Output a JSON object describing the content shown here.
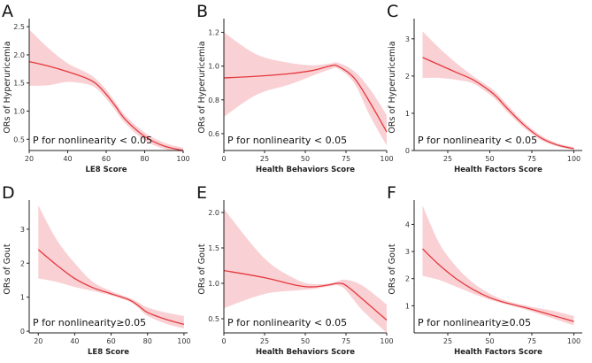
{
  "chart_data": [
    {
      "panel": "A",
      "type": "line",
      "xlabel": "LE8 Score",
      "ylabel": "ORs of Hyperuricemia",
      "xlim": [
        20,
        100
      ],
      "ylim": [
        0.3,
        2.55
      ],
      "xticks": [
        20,
        40,
        60,
        80,
        100
      ],
      "yticks": [
        0.5,
        1.0,
        1.5,
        2.0,
        2.5
      ],
      "xticklabels": [
        "20",
        "40",
        "60",
        "80",
        "100"
      ],
      "yticklabels": [
        "0.5",
        "1.0",
        "1.5",
        "2.0",
        "2.5"
      ],
      "x": [
        20,
        30,
        40,
        50,
        55,
        60,
        65,
        70,
        80,
        90,
        100
      ],
      "y": [
        1.88,
        1.8,
        1.7,
        1.58,
        1.48,
        1.3,
        1.08,
        0.85,
        0.55,
        0.38,
        0.3
      ],
      "lower": [
        1.45,
        1.46,
        1.52,
        1.48,
        1.4,
        1.22,
        1.0,
        0.78,
        0.48,
        0.33,
        0.27
      ],
      "upper": [
        2.45,
        2.12,
        1.85,
        1.68,
        1.56,
        1.38,
        1.15,
        0.92,
        0.62,
        0.44,
        0.35
      ],
      "annotation": "P for nonlinearity < 0.05"
    },
    {
      "panel": "B",
      "type": "line",
      "xlabel": "Health Behaviors Score",
      "ylabel": "ORs of Hyperuricemia",
      "xlim": [
        0,
        100
      ],
      "ylim": [
        0.5,
        1.25
      ],
      "xticks": [
        0,
        25,
        50,
        75,
        100
      ],
      "yticks": [
        0.6,
        0.8,
        1.0,
        1.2
      ],
      "xticklabels": [
        "0",
        "25",
        "50",
        "75",
        "100"
      ],
      "yticklabels": [
        "0.6",
        "0.8",
        "1.0",
        "1.2"
      ],
      "x": [
        0,
        20,
        40,
        55,
        65,
        70,
        80,
        90,
        100
      ],
      "y": [
        0.93,
        0.94,
        0.955,
        0.975,
        1.0,
        1.0,
        0.93,
        0.78,
        0.61
      ],
      "lower": [
        0.7,
        0.83,
        0.89,
        0.945,
        0.98,
        0.985,
        0.9,
        0.7,
        0.53
      ],
      "upper": [
        1.2,
        1.07,
        1.02,
        1.005,
        1.015,
        1.02,
        0.97,
        0.86,
        0.71
      ],
      "annotation": "P for nonlinearity < 0.05"
    },
    {
      "panel": "C",
      "type": "line",
      "xlabel": "Health Factors Score",
      "ylabel": "ORs of Hyperuricemia",
      "xlim": [
        5,
        105
      ],
      "ylim": [
        0,
        3.4
      ],
      "xticks": [
        25,
        50,
        75,
        100
      ],
      "yticks": [
        0,
        1,
        2,
        3
      ],
      "xticklabels": [
        "25",
        "50",
        "75",
        "100"
      ],
      "yticklabels": [
        "0",
        "1",
        "2",
        "3"
      ],
      "x": [
        10,
        20,
        30,
        40,
        50,
        55,
        60,
        70,
        80,
        90,
        100
      ],
      "y": [
        2.5,
        2.3,
        2.1,
        1.9,
        1.6,
        1.4,
        1.15,
        0.7,
        0.35,
        0.15,
        0.05
      ],
      "lower": [
        1.95,
        1.95,
        1.9,
        1.8,
        1.5,
        1.3,
        1.05,
        0.62,
        0.29,
        0.11,
        0.02
      ],
      "upper": [
        3.2,
        2.75,
        2.35,
        2.0,
        1.7,
        1.5,
        1.25,
        0.78,
        0.42,
        0.2,
        0.09
      ],
      "annotation": "P for nonlinearity < 0.05"
    },
    {
      "panel": "D",
      "type": "line",
      "xlabel": "LE8 Score",
      "ylabel": "ORs of Gout",
      "xlim": [
        15,
        102
      ],
      "ylim": [
        -0.05,
        3.7
      ],
      "xticks": [
        20,
        40,
        60,
        80,
        100
      ],
      "yticks": [
        0,
        1,
        2,
        3
      ],
      "xticklabels": [
        "20",
        "40",
        "60",
        "80",
        "100"
      ],
      "yticklabels": [
        "0",
        "1",
        "2",
        "3"
      ],
      "x": [
        20,
        30,
        40,
        50,
        60,
        70,
        75,
        80,
        90,
        100
      ],
      "y": [
        2.4,
        1.95,
        1.55,
        1.28,
        1.1,
        0.92,
        0.75,
        0.55,
        0.35,
        0.2
      ],
      "lower": [
        1.55,
        1.45,
        1.3,
        1.18,
        1.05,
        0.87,
        0.68,
        0.45,
        0.22,
        0.08
      ],
      "upper": [
        3.7,
        2.7,
        2.0,
        1.45,
        1.18,
        0.98,
        0.85,
        0.7,
        0.55,
        0.45
      ],
      "annotation": "P for nonlinearity≥0.05"
    },
    {
      "panel": "E",
      "type": "line",
      "xlabel": "Health Behaviors Score",
      "ylabel": "ORs of Gout",
      "xlim": [
        0,
        100
      ],
      "ylim": [
        0.3,
        2.1
      ],
      "xticks": [
        0,
        25,
        50,
        75,
        100
      ],
      "yticks": [
        0.5,
        1.0,
        1.5,
        2.0
      ],
      "xticklabels": [
        "0",
        "25",
        "50",
        "75",
        "100"
      ],
      "yticklabels": [
        "0.5",
        "1.0",
        "1.5",
        "2.0"
      ],
      "x": [
        0,
        25,
        45,
        55,
        65,
        70,
        75,
        85,
        100
      ],
      "y": [
        1.18,
        1.08,
        0.97,
        0.95,
        0.98,
        1.0,
        0.97,
        0.78,
        0.48
      ],
      "lower": [
        0.65,
        0.85,
        0.9,
        0.92,
        0.96,
        0.97,
        0.9,
        0.62,
        0.3
      ],
      "upper": [
        2.05,
        1.35,
        1.05,
        0.99,
        1.0,
        1.03,
        1.05,
        0.97,
        0.7
      ],
      "annotation": "P for nonlinearity < 0.05"
    },
    {
      "panel": "F",
      "type": "line",
      "xlabel": "Health Factors Score",
      "ylabel": "ORs of Gout",
      "xlim": [
        5,
        105
      ],
      "ylim": [
        0,
        4.7
      ],
      "xticks": [
        25,
        50,
        75,
        100
      ],
      "yticks": [
        1,
        2,
        3,
        4
      ],
      "xticklabels": [
        "25",
        "50",
        "75",
        "100"
      ],
      "yticklabels": [
        "1",
        "2",
        "3",
        "4"
      ],
      "x": [
        10,
        20,
        30,
        40,
        50,
        60,
        70,
        80,
        90,
        100
      ],
      "y": [
        3.1,
        2.5,
        2.0,
        1.6,
        1.3,
        1.1,
        0.95,
        0.78,
        0.6,
        0.42
      ],
      "lower": [
        2.1,
        1.95,
        1.7,
        1.45,
        1.22,
        1.05,
        0.88,
        0.68,
        0.48,
        0.28
      ],
      "upper": [
        4.7,
        3.3,
        2.45,
        1.85,
        1.45,
        1.18,
        1.03,
        0.9,
        0.78,
        0.62
      ],
      "annotation": "P for nonlinearity≥0.05"
    }
  ],
  "colors": {
    "line": "#e4383d",
    "band": "#f8c9cc",
    "axis": "#222222"
  }
}
